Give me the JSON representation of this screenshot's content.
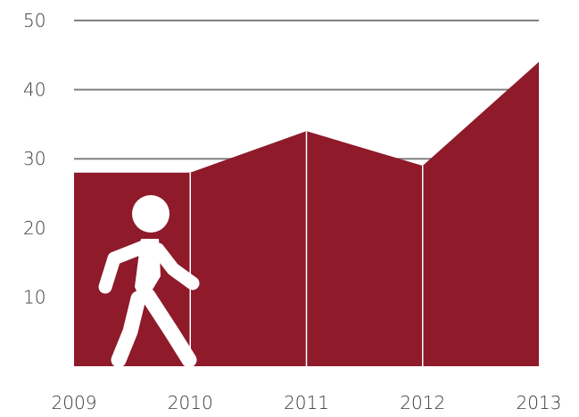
{
  "chart_data": {
    "type": "area",
    "x": [
      "2009",
      "2010",
      "2011",
      "2012",
      "2013"
    ],
    "series": [
      {
        "values": [
          28,
          28,
          34,
          29,
          44
        ]
      }
    ],
    "ylim": [
      0,
      50
    ],
    "yticks": [
      "10",
      "20",
      "30",
      "40",
      "50"
    ],
    "grid": true,
    "title": "",
    "xlabel": "",
    "ylabel": ""
  },
  "colors": {
    "area_fill": "#8e1a2a",
    "separator": "#ffffff",
    "grid": "#808080",
    "icon": "#ffffff"
  },
  "icons": {
    "overlay": "walking-person-icon"
  }
}
